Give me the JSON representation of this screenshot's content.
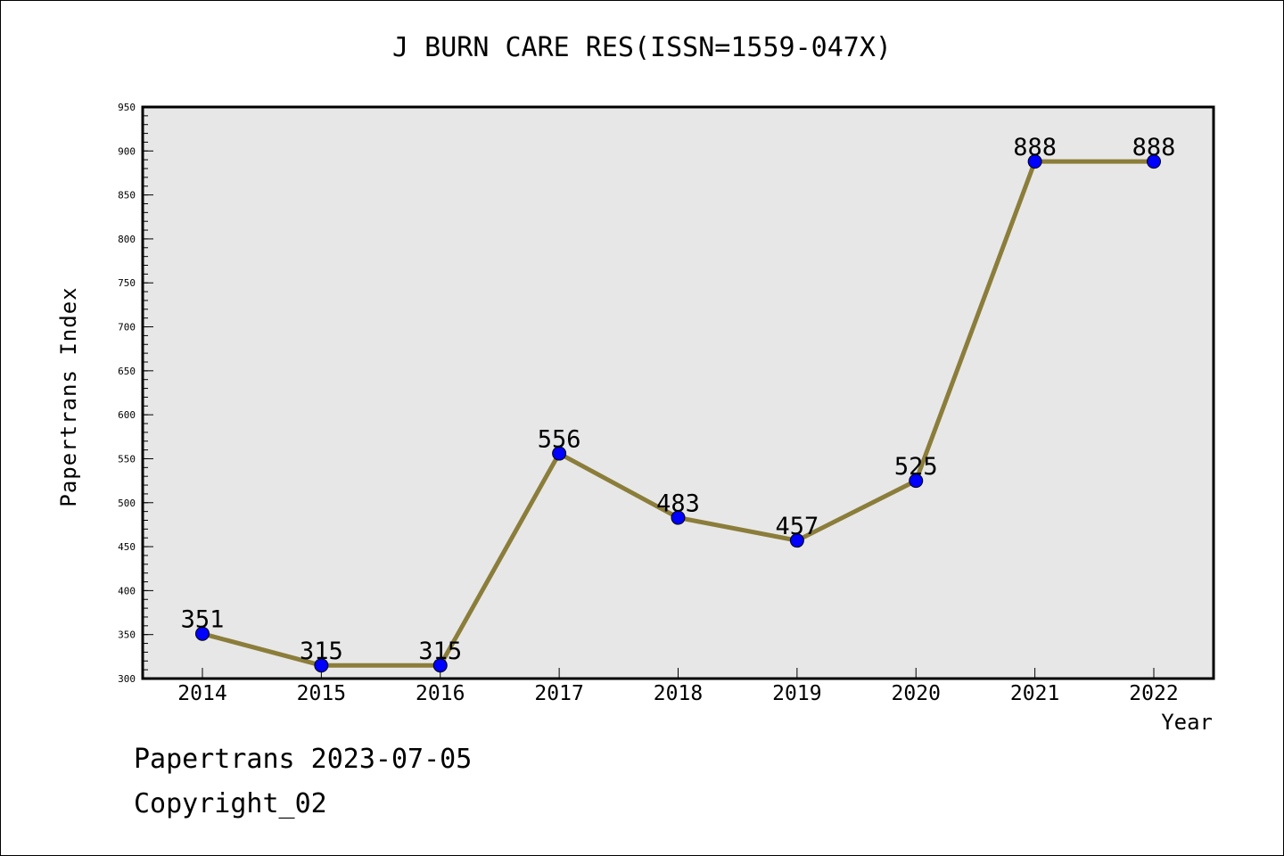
{
  "chart_data": {
    "type": "line",
    "title": "J BURN CARE RES(ISSN=1559-047X)",
    "xlabel": "Year",
    "ylabel": "Papertrans Index",
    "categories": [
      "2014",
      "2015",
      "2016",
      "2017",
      "2018",
      "2019",
      "2020",
      "2021",
      "2022"
    ],
    "series": [
      {
        "values": [
          351,
          315,
          315,
          556,
          483,
          457,
          525,
          888,
          888
        ],
        "line_color": "#8b7d3a",
        "marker_color": "#0000ff"
      }
    ],
    "data_labels": [
      "351",
      "315",
      "315",
      "556",
      "483",
      "457",
      "525",
      "888",
      "888"
    ],
    "ylim": [
      300,
      950
    ],
    "y_ticks": [
      "300",
      "350",
      "400",
      "450",
      "500",
      "550",
      "600",
      "650",
      "700",
      "750",
      "800",
      "850",
      "900",
      "950"
    ],
    "y_tick_values": [
      300,
      350,
      400,
      450,
      500,
      550,
      600,
      650,
      700,
      750,
      800,
      850,
      900,
      950
    ],
    "y_minor_step": 10,
    "plot_background": "#e7e7e7",
    "grid": false,
    "legend": "none"
  },
  "footer": {
    "date_line": "Papertrans 2023-07-05",
    "copyright_line": "Copyright_02"
  }
}
